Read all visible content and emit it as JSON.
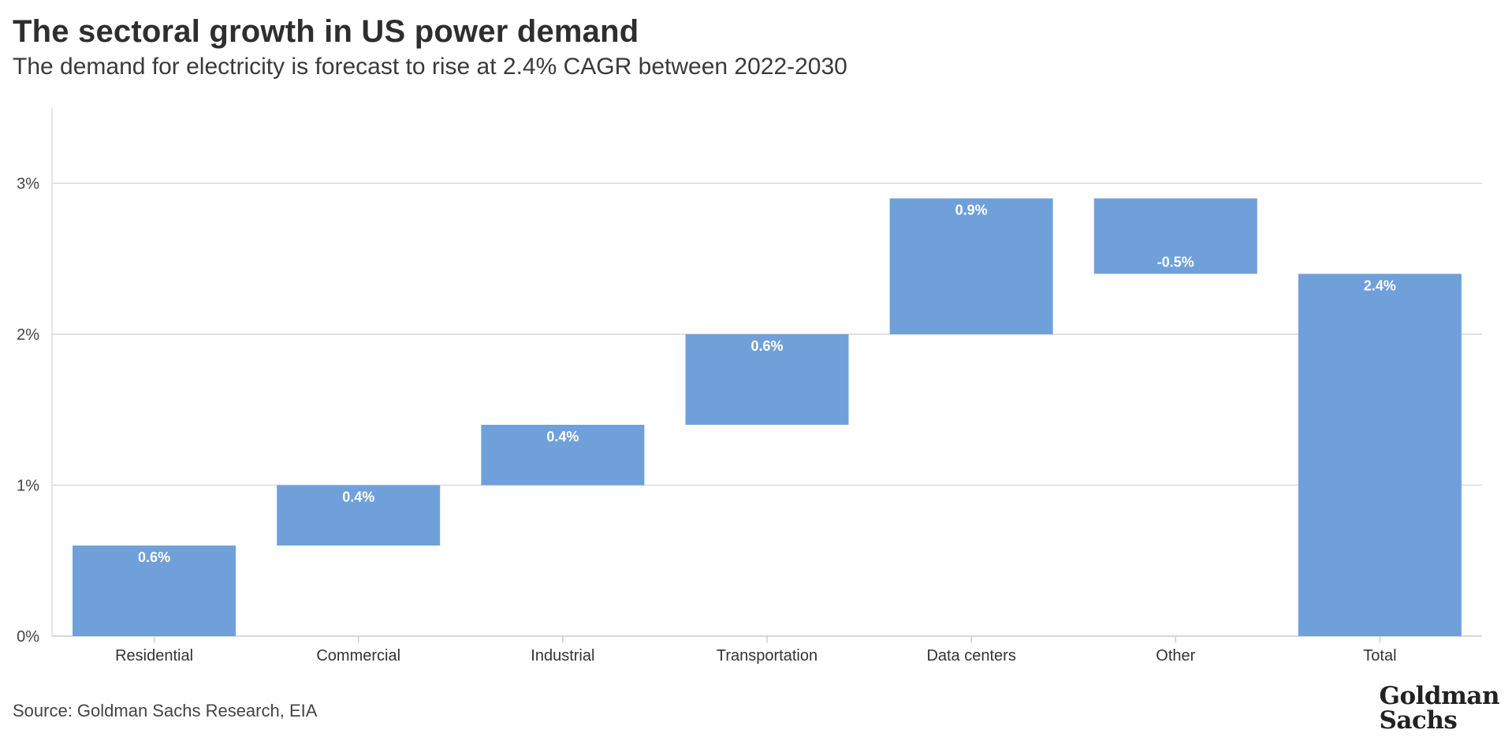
{
  "header": {
    "title": "The sectoral growth in US power demand",
    "subtitle": "The demand for electricity is forecast to rise at 2.4% CAGR between 2022-2030"
  },
  "footer": {
    "source": "Source: Goldman Sachs Research, EIA",
    "logo_line1": "Goldman",
    "logo_line2": "Sachs"
  },
  "colors": {
    "bar": "#6fa0da",
    "grid": "#d9d9d9",
    "axis": "#cccccc"
  },
  "chart_data": {
    "type": "bar",
    "subtype": "waterfall",
    "title": "The sectoral growth in US power demand",
    "subtitle": "The demand for electricity is forecast to rise at 2.4% CAGR between 2022-2030",
    "xlabel": "",
    "ylabel": "",
    "ylim": [
      0,
      3.5
    ],
    "yticks": [
      0,
      1,
      2,
      3
    ],
    "ytick_labels": [
      "0%",
      "1%",
      "2%",
      "3%"
    ],
    "grid": true,
    "categories": [
      "Residential",
      "Commercial",
      "Industrial",
      "Transportation",
      "Data centers",
      "Other",
      "Total"
    ],
    "bars": [
      {
        "category": "Residential",
        "start": 0.0,
        "end": 0.6,
        "label": "0.6%"
      },
      {
        "category": "Commercial",
        "start": 0.6,
        "end": 1.0,
        "label": "0.4%"
      },
      {
        "category": "Industrial",
        "start": 1.0,
        "end": 1.4,
        "label": "0.4%"
      },
      {
        "category": "Transportation",
        "start": 1.4,
        "end": 2.0,
        "label": "0.6%"
      },
      {
        "category": "Data centers",
        "start": 2.0,
        "end": 2.9,
        "label": "0.9%"
      },
      {
        "category": "Other",
        "start": 2.9,
        "end": 2.4,
        "label": "-0.5%"
      },
      {
        "category": "Total",
        "start": 0.0,
        "end": 2.4,
        "label": "2.4%"
      }
    ]
  }
}
